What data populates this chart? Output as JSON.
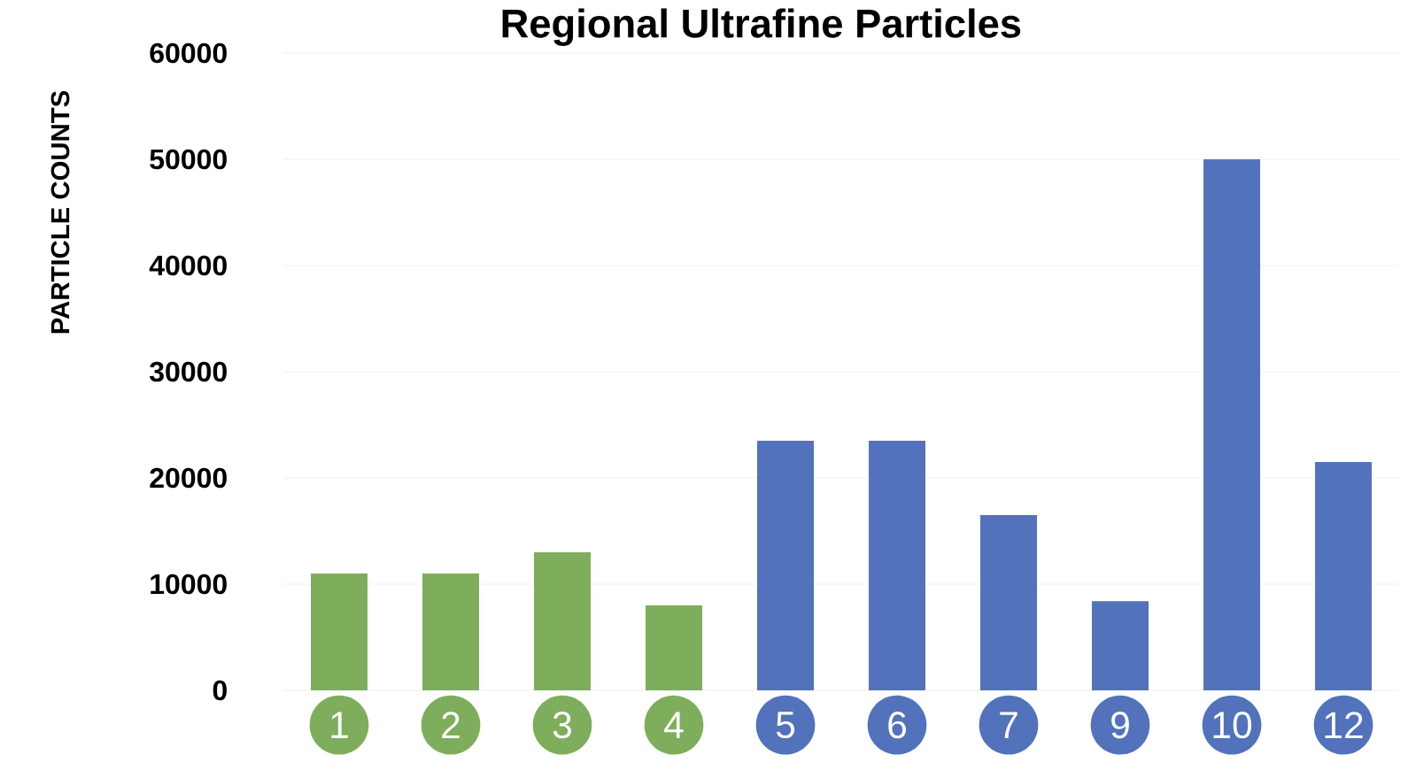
{
  "chart_data": {
    "type": "bar",
    "title": "Regional Ultrafine Particles",
    "ylabel": "PARTICLE COUNTS",
    "categories": [
      "1",
      "2",
      "3",
      "4",
      "5",
      "6",
      "7",
      "9",
      "10",
      "12"
    ],
    "values": [
      11000,
      11000,
      13000,
      8000,
      23500,
      23500,
      16500,
      8400,
      50000,
      21500
    ],
    "colors": [
      "#7ead5c",
      "#7ead5c",
      "#7ead5c",
      "#7ead5c",
      "#5272bb",
      "#5272bb",
      "#5272bb",
      "#5272bb",
      "#5272bb",
      "#5272bb"
    ],
    "ylim": [
      0,
      60000
    ],
    "yticks": [
      0,
      10000,
      20000,
      30000,
      40000,
      50000,
      60000
    ],
    "grid": "y"
  }
}
